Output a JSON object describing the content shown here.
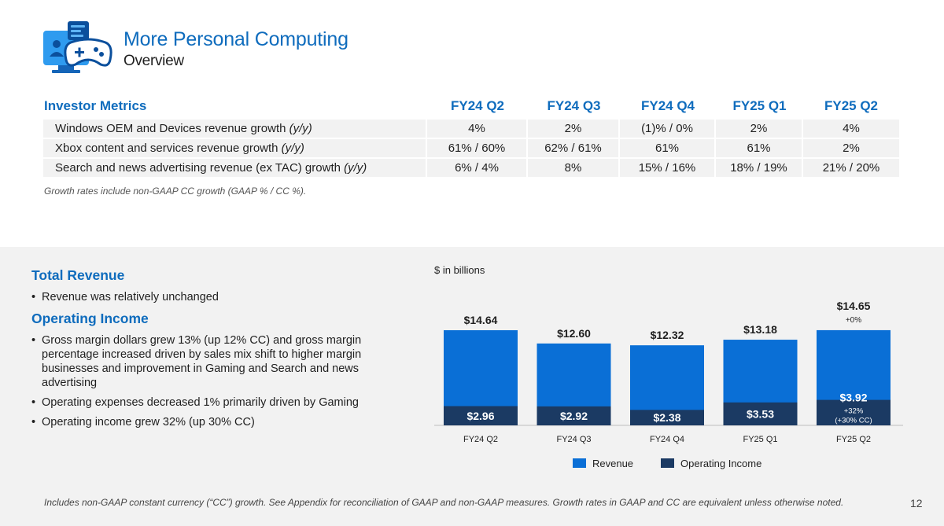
{
  "header": {
    "title": "More Personal Computing",
    "subtitle": "Overview"
  },
  "metrics": {
    "header_label": "Investor Metrics",
    "columns": [
      "FY24 Q2",
      "FY24 Q3",
      "FY24 Q4",
      "FY25 Q1",
      "FY25 Q2"
    ],
    "rows": [
      {
        "label": "Windows OEM and Devices revenue growth ",
        "label_suffix": "(y/y)",
        "values": [
          "4%",
          "2%",
          "(1)% / 0%",
          "2%",
          "4%"
        ]
      },
      {
        "label": "Xbox content and services revenue growth ",
        "label_suffix": "(y/y)",
        "values": [
          "61% / 60%",
          "62% / 61%",
          "61%",
          "61%",
          "2%"
        ]
      },
      {
        "label": "Search and news advertising revenue (ex TAC) growth ",
        "label_suffix": "(y/y)",
        "values": [
          "6% / 4%",
          "8%",
          "15% / 16%",
          "18% / 19%",
          "21% / 20%"
        ]
      }
    ],
    "note": "Growth rates include non-GAAP CC growth (GAAP % / CC %)."
  },
  "commentary": {
    "total_revenue_heading": "Total Revenue",
    "total_revenue_bullets": [
      "Revenue was relatively unchanged"
    ],
    "operating_income_heading": "Operating Income",
    "operating_income_bullets": [
      "Gross margin dollars grew 13% (up 12% CC) and gross margin percentage increased driven by sales mix shift to higher margin businesses and improvement in Gaming and Search and news advertising",
      "Operating expenses decreased 1% primarily driven by Gaming",
      "Operating income grew 32% (up 30% CC)"
    ]
  },
  "chart_data": {
    "type": "bar",
    "unit_label": "$ in billions",
    "categories": [
      "FY24 Q2",
      "FY24 Q3",
      "FY24 Q4",
      "FY25 Q1",
      "FY25 Q2"
    ],
    "series": [
      {
        "name": "Revenue",
        "values": [
          14.64,
          12.6,
          12.32,
          13.18,
          14.65
        ],
        "labels": [
          "$14.64",
          "$12.60",
          "$12.32",
          "$13.18",
          "$14.65"
        ]
      },
      {
        "name": "Operating Income",
        "values": [
          2.96,
          2.92,
          2.38,
          3.53,
          3.92
        ],
        "labels": [
          "$2.96",
          "$2.92",
          "$2.38",
          "$3.53",
          "$3.92"
        ]
      }
    ],
    "annotations": {
      "revenue_growth_last": "+0%",
      "op_income_growth_last_1": "+32%",
      "op_income_growth_last_2": "(+30% CC)"
    },
    "ylim": [
      0,
      15
    ],
    "colors": {
      "revenue": "#0a6fd6",
      "operating_income": "#1b3a63"
    },
    "legend": [
      "Revenue",
      "Operating Income"
    ]
  },
  "footer": {
    "note": "Includes non-GAAP constant currency (“CC”) growth. See Appendix for reconciliation of GAAP and non-GAAP measures. Growth rates in GAAP and CC are equivalent unless otherwise noted.",
    "page_number": "12"
  }
}
